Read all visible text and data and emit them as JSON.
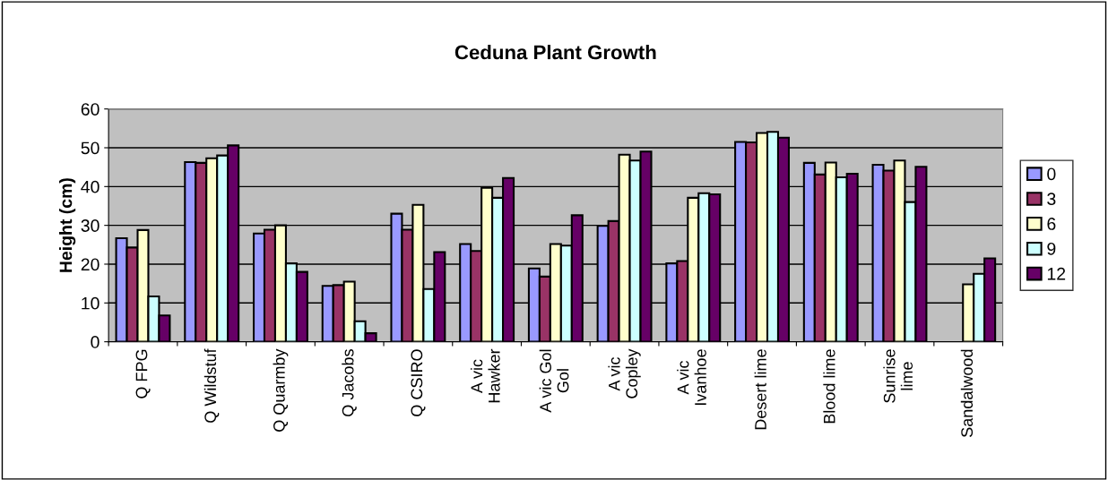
{
  "chart_data": {
    "type": "bar",
    "title": "Ceduna Plant Growth",
    "ylabel": "Height (cm)",
    "categories": [
      "Q FPG",
      "Q Wildstuf",
      "Q Quarmby",
      "Q Jacobs",
      "Q CSIRO",
      "A vic\nHawker",
      "A vic Gol\nGol",
      "A vic\nCopley",
      "A vic\nIvanhoe",
      "Desert lime",
      "Blood lime",
      "Sunrise\nlime",
      "Sandalwood"
    ],
    "series": [
      {
        "name": "0",
        "color": "#9999ff",
        "values": [
          26.7,
          46.3,
          27.9,
          14.4,
          33.0,
          25.2,
          18.9,
          29.9,
          20.2,
          51.5,
          46.1,
          45.6,
          null
        ]
      },
      {
        "name": "3",
        "color": "#993366",
        "values": [
          24.3,
          46.1,
          28.9,
          14.6,
          28.9,
          23.4,
          16.8,
          31.1,
          20.8,
          51.4,
          43.1,
          44.1,
          null
        ]
      },
      {
        "name": "6",
        "color": "#ffffcc",
        "values": [
          28.8,
          47.3,
          30.0,
          15.5,
          35.3,
          39.7,
          25.2,
          48.2,
          37.1,
          53.8,
          46.2,
          46.7,
          14.8
        ]
      },
      {
        "name": "9",
        "color": "#ccffff",
        "values": [
          11.7,
          48.0,
          20.2,
          5.3,
          13.6,
          37.1,
          24.8,
          46.7,
          38.3,
          54.1,
          42.4,
          36.0,
          17.5
        ]
      },
      {
        "name": "12",
        "color": "#660066",
        "values": [
          6.8,
          50.6,
          18.0,
          2.2,
          23.1,
          42.2,
          32.6,
          49.0,
          38.0,
          52.6,
          43.3,
          45.1,
          21.5
        ]
      }
    ],
    "ylim": [
      0,
      60
    ],
    "yticks": [
      0,
      10,
      20,
      30,
      40,
      50,
      60
    ],
    "grid": "y",
    "legend": "right"
  }
}
